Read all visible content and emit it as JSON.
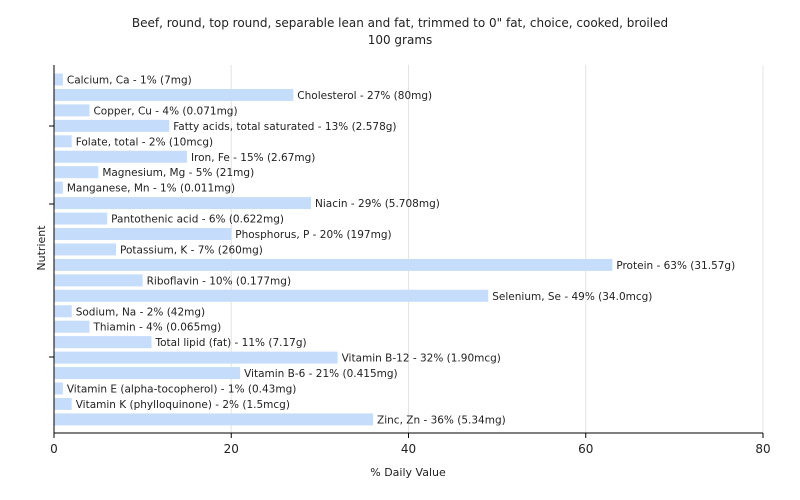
{
  "chart_data": {
    "type": "bar",
    "orientation": "horizontal",
    "title": "Beef, round, top round, separable lean and fat, trimmed to 0\" fat, choice, cooked, broiled",
    "subtitle": "100 grams",
    "xlabel": "% Daily Value",
    "ylabel": "Nutrient",
    "xlim": [
      0,
      80
    ],
    "xticks": [
      0,
      20,
      40,
      60,
      80
    ],
    "grid": true,
    "bar_color": "#c6dcfb",
    "categories": [
      "Calcium, Ca",
      "Cholesterol",
      "Copper, Cu",
      "Fatty acids, total saturated",
      "Folate, total",
      "Iron, Fe",
      "Magnesium, Mg",
      "Manganese, Mn",
      "Niacin",
      "Pantothenic acid",
      "Phosphorus, P",
      "Potassium, K",
      "Protein",
      "Riboflavin",
      "Selenium, Se",
      "Sodium, Na",
      "Thiamin",
      "Total lipid (fat)",
      "Vitamin B-12",
      "Vitamin B-6",
      "Vitamin E (alpha-tocopherol)",
      "Vitamin K (phylloquinone)",
      "Zinc, Zn"
    ],
    "values": [
      1,
      27,
      4,
      13,
      2,
      15,
      5,
      1,
      29,
      6,
      20,
      7,
      63,
      10,
      49,
      2,
      4,
      11,
      32,
      21,
      1,
      2,
      36
    ],
    "labels": [
      "Calcium, Ca - 1% (7mg)",
      "Cholesterol - 27% (80mg)",
      "Copper, Cu - 4% (0.071mg)",
      "Fatty acids, total saturated - 13% (2.578g)",
      "Folate, total - 2% (10mcg)",
      "Iron, Fe - 15% (2.67mg)",
      "Magnesium, Mg - 5% (21mg)",
      "Manganese, Mn - 1% (0.011mg)",
      "Niacin - 29% (5.708mg)",
      "Pantothenic acid - 6% (0.622mg)",
      "Phosphorus, P - 20% (197mg)",
      "Potassium, K - 7% (260mg)",
      "Protein - 63% (31.57g)",
      "Riboflavin - 10% (0.177mg)",
      "Selenium, Se - 49% (34.0mcg)",
      "Sodium, Na - 2% (42mg)",
      "Thiamin - 4% (0.065mg)",
      "Total lipid (fat) - 11% (7.17g)",
      "Vitamin B-12 - 32% (1.90mcg)",
      "Vitamin B-6 - 21% (0.415mg)",
      "Vitamin E (alpha-tocopherol) - 1% (0.43mg)",
      "Vitamin K (phylloquinone) - 2% (1.5mcg)",
      "Zinc, Zn - 36% (5.34mg)"
    ]
  }
}
